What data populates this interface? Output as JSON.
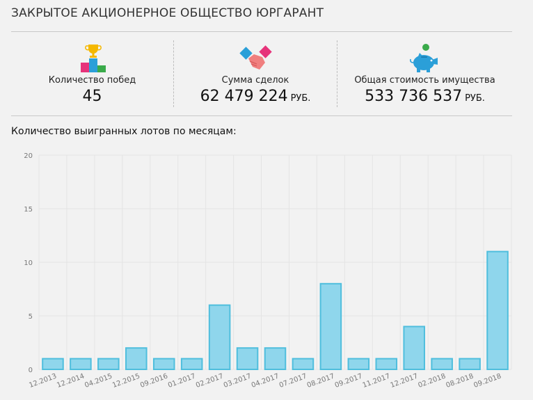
{
  "page": {
    "title": "ЗАКРЫТОЕ АКЦИОНЕРНОЕ ОБЩЕСТВО ЮРГАРАНТ",
    "chart_heading": "Количество выигранных лотов по месяцам:"
  },
  "stats": {
    "wins": {
      "label": "Количество побед",
      "value": "45",
      "icon": "trophy-podium-icon"
    },
    "deals": {
      "label": "Сумма сделок",
      "value": "62 479 224",
      "unit": "РУБ.",
      "icon": "handshake-icon"
    },
    "assets": {
      "label": "Общая стоимость имущества",
      "value": "533 736 537",
      "unit": "РУБ.",
      "icon": "piggy-bank-icon"
    }
  },
  "colors": {
    "bar_fill": "#8fd6ec",
    "bar_stroke": "#4fbedd",
    "grid": "#e4e4e4"
  },
  "chart_data": {
    "type": "bar",
    "categories": [
      "12.2013",
      "12.2014",
      "04.2015",
      "12.2015",
      "09.2016",
      "01.2017",
      "02.2017",
      "03.2017",
      "04.2017",
      "07.2017",
      "08.2017",
      "09.2017",
      "11.2017",
      "12.2017",
      "02.2018",
      "08.2018",
      "09.2018"
    ],
    "values": [
      1,
      1,
      1,
      2,
      1,
      1,
      6,
      2,
      2,
      1,
      8,
      1,
      1,
      4,
      1,
      1,
      11
    ],
    "ylim": [
      0,
      20
    ],
    "yticks": [
      0,
      5,
      10,
      15,
      20
    ],
    "grid": true
  }
}
